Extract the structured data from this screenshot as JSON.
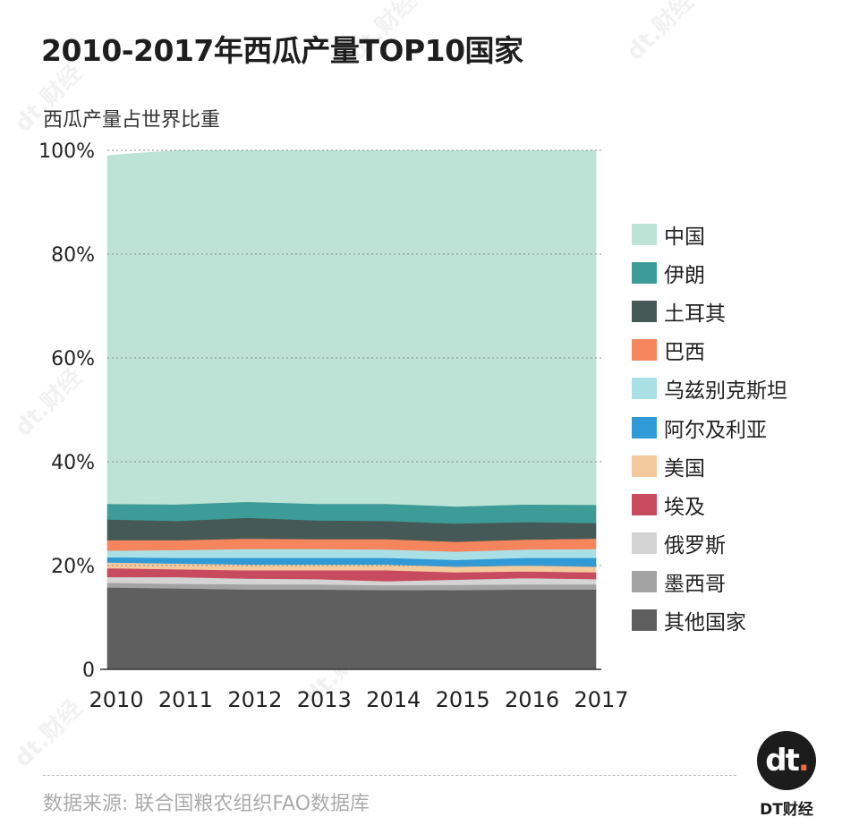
{
  "header": {
    "title": "2010-2017年西瓜产量TOP10国家",
    "subtitle": "西瓜产量占世界比重"
  },
  "footer": {
    "source": "数据来源: 联合国粮农组织FAO数据库",
    "logo_mark": "dt",
    "logo_dot": ".",
    "logo_text": "DT财经"
  },
  "watermark": {
    "text": "dt.财经"
  },
  "chart_data": {
    "type": "area",
    "stacked": true,
    "x": [
      "2010",
      "2011",
      "2012",
      "2013",
      "2014",
      "2015",
      "2016",
      "2017"
    ],
    "ylim": [
      0,
      100
    ],
    "yticks": [
      "0",
      "20%",
      "40%",
      "60%",
      "80%",
      "100%"
    ],
    "ytick_values": [
      0,
      20,
      40,
      60,
      80,
      100
    ],
    "grid": "dotted horizontal",
    "legend_position": "right",
    "series": [
      {
        "name": "其他国家",
        "color": "#5f5f5f",
        "values": [
          15.8,
          15.6,
          15.4,
          15.4,
          15.3,
          15.3,
          15.4,
          15.4
        ]
      },
      {
        "name": "墨西哥",
        "color": "#a3a3a3",
        "values": [
          0.9,
          0.9,
          1.0,
          1.0,
          0.9,
          1.0,
          1.0,
          1.0
        ]
      },
      {
        "name": "俄罗斯",
        "color": "#d4d4d4",
        "values": [
          1.1,
          1.3,
          1.1,
          1.0,
          0.8,
          1.0,
          1.2,
          1.0
        ]
      },
      {
        "name": "埃及",
        "color": "#c84a5e",
        "values": [
          1.7,
          1.5,
          1.6,
          1.7,
          2.1,
          1.4,
          1.3,
          1.3
        ]
      },
      {
        "name": "美国",
        "color": "#f5c99e",
        "values": [
          1.1,
          1.1,
          1.1,
          1.1,
          1.1,
          1.1,
          1.1,
          1.1
        ]
      },
      {
        "name": "阿尔及利亚",
        "color": "#2f9ad6",
        "values": [
          1.0,
          1.1,
          1.3,
          1.3,
          1.3,
          1.3,
          1.5,
          1.7
        ]
      },
      {
        "name": "乌兹别克斯坦",
        "color": "#aadfe6",
        "values": [
          1.3,
          1.5,
          1.7,
          1.7,
          1.6,
          1.6,
          1.6,
          1.7
        ]
      },
      {
        "name": "巴西",
        "color": "#f4855d",
        "values": [
          2.0,
          1.9,
          2.0,
          1.9,
          2.0,
          1.9,
          1.9,
          2.0
        ]
      },
      {
        "name": "土耳其",
        "color": "#455a56",
        "values": [
          4.0,
          3.7,
          4.0,
          3.6,
          3.5,
          3.5,
          3.4,
          3.0
        ]
      },
      {
        "name": "伊朗",
        "color": "#3d9c97",
        "values": [
          3.0,
          3.2,
          3.1,
          3.2,
          3.3,
          3.3,
          3.4,
          3.5
        ]
      },
      {
        "name": "中国",
        "color": "#bde3d6",
        "values": [
          67.1,
          68.2,
          67.7,
          68.1,
          68.1,
          68.6,
          68.2,
          68.3
        ]
      }
    ]
  }
}
